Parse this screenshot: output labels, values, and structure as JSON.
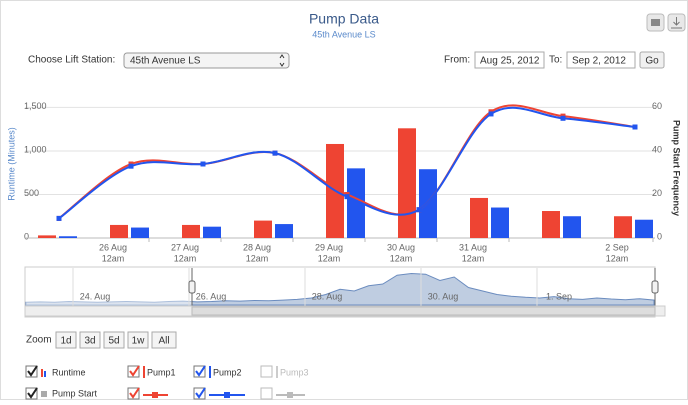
{
  "header": {
    "title": "Pump Data",
    "subtitle": "45th Avenue LS"
  },
  "controls": {
    "station_label": "Choose Lift Station:",
    "station_value": "45th Avenue LS",
    "from_label": "From:",
    "from_value": "Aug 25, 2012",
    "to_label": "To:",
    "to_value": "Sep 2, 2012",
    "go": "Go"
  },
  "chart_data": {
    "type": "bar",
    "y_label": "Runtime (Minutes)",
    "y2_label": "Pump Start Frequency",
    "categories": [
      null,
      "26 Aug",
      "27 Aug",
      "28 Aug",
      "29 Aug",
      "30 Aug",
      "31 Aug",
      null,
      "2 Sep"
    ],
    "category_sublabels": [
      null,
      "12am",
      "12am",
      "12am",
      "12am",
      "12am",
      "12am",
      null,
      "12am"
    ],
    "ylim": [
      0,
      1700
    ],
    "yticks": [
      0,
      500,
      {
        "value": 1000,
        "label": "1,000"
      },
      {
        "value": 1500,
        "label": "1,500"
      }
    ],
    "y2lim": [
      0,
      68
    ],
    "y2ticks": [
      0,
      20,
      40,
      60
    ],
    "grid": true,
    "series": [
      {
        "name": "Pump1",
        "type": "bar",
        "color": "#ee4433",
        "values": [
          30,
          150,
          150,
          200,
          1080,
          1260,
          460,
          310,
          250
        ]
      },
      {
        "name": "Pump2",
        "type": "bar",
        "color": "#2255ee",
        "values": [
          20,
          120,
          130,
          160,
          800,
          790,
          350,
          250,
          210
        ]
      },
      {
        "type": "line",
        "axis": "y2",
        "color": "#ee4433",
        "values": [
          9,
          34,
          34,
          39,
          20,
          13,
          58,
          56,
          51
        ]
      },
      {
        "type": "line",
        "axis": "y2",
        "color": "#2255ee",
        "values": [
          9,
          33,
          34,
          39,
          19,
          13,
          57,
          55,
          51
        ]
      }
    ]
  },
  "navigator": {
    "type": "area",
    "color": "#8aa4c8",
    "ylim": [
      0,
      100
    ],
    "values": [
      8,
      9,
      8,
      10,
      9,
      8,
      9,
      10,
      9,
      8,
      10,
      11,
      9,
      10,
      12,
      11,
      13,
      12,
      14,
      16,
      20,
      30,
      45,
      40,
      55,
      60,
      85,
      90,
      88,
      70,
      80,
      50,
      40,
      30,
      25,
      22,
      20,
      24,
      18,
      16,
      20,
      17,
      15,
      18,
      14
    ],
    "labels": [
      "24. Aug",
      "26. Aug",
      "28. Aug",
      "30. Aug",
      "1. Sep"
    ]
  },
  "zoom": {
    "label": "Zoom",
    "buttons": [
      "1d",
      "3d",
      "5d",
      "1w",
      "All"
    ]
  },
  "legend": {
    "runtime": "Runtime",
    "pump1": "Pump1",
    "pump2": "Pump2",
    "pump3": "Pump3",
    "pump_start": "Pump Start"
  }
}
